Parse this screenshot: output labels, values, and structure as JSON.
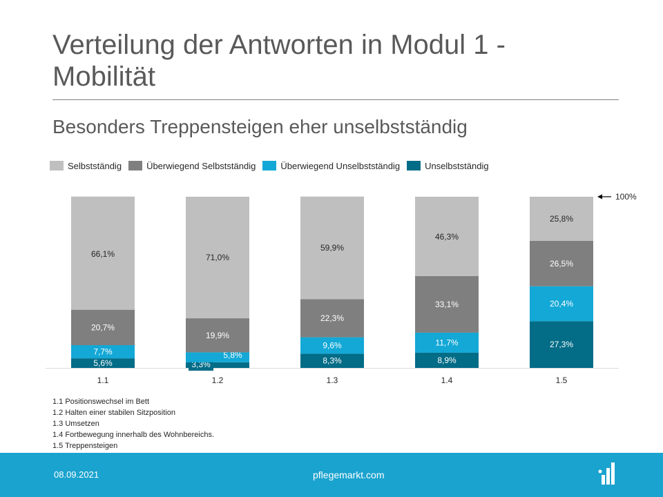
{
  "slide": {
    "title": "Verteilung der Antworten in Modul 1 - Mobilität",
    "subtitle": "Besonders Treppensteigen eher unselbstständig"
  },
  "colors": {
    "selbststaendig": "#bfbfbf",
    "ueberwiegend_selbststaendig": "#7f7f7f",
    "ueberwiegend_unselbststaendig": "#13a8d6",
    "unselbststaendig": "#036c87",
    "footer": "#1ba3cf"
  },
  "chart_data": {
    "type": "bar",
    "stacked": true,
    "categories": [
      "1.1",
      "1.2",
      "1.3",
      "1.4",
      "1.5"
    ],
    "ylim": [
      0,
      100
    ],
    "series": [
      {
        "name": "Unselbstständig",
        "color": "#036c87",
        "values": [
          5.6,
          3.3,
          8.3,
          8.9,
          27.3
        ],
        "labels": [
          "5,6%",
          "3,3%",
          "8,3%",
          "8,9%",
          "27,3%"
        ]
      },
      {
        "name": "Überwiegend Unselbstständig",
        "color": "#13a8d6",
        "values": [
          7.7,
          5.8,
          9.6,
          11.7,
          20.4
        ],
        "labels": [
          "7,7%",
          "5,8%",
          "9,6%",
          "11,7%",
          "20,4%"
        ]
      },
      {
        "name": "Überwiegend Selbstständig",
        "color": "#7f7f7f",
        "values": [
          20.7,
          19.9,
          22.3,
          33.1,
          26.5
        ],
        "labels": [
          "20,7%",
          "19,9%",
          "22,3%",
          "33,1%",
          "26,5%"
        ]
      },
      {
        "name": "Selbstständig",
        "color": "#bfbfbf",
        "values": [
          66.1,
          71.0,
          59.9,
          46.3,
          25.8
        ],
        "labels": [
          "66,1%",
          "71,0%",
          "59,9%",
          "46,3%",
          "25,8%"
        ]
      }
    ],
    "legend_order": [
      "Selbstständig",
      "Überwiegend Selbstständig",
      "Überwiegend Unselbstständig",
      "Unselbstständig"
    ],
    "annotation": "100%",
    "legend_position": "top-left"
  },
  "footnotes": [
    "1.1 Positionswechsel im Bett",
    "1.2 Halten einer stabilen Sitzposition",
    "1.3 Umsetzen",
    "1.4 Fortbewegung  innerhalb des Wohnbereichs.",
    "1.5 Treppensteigen"
  ],
  "footer": {
    "date": "08.09.2021",
    "site": "pflegemarkt.com",
    "logo_icon": "bar-chart-logo-icon"
  }
}
